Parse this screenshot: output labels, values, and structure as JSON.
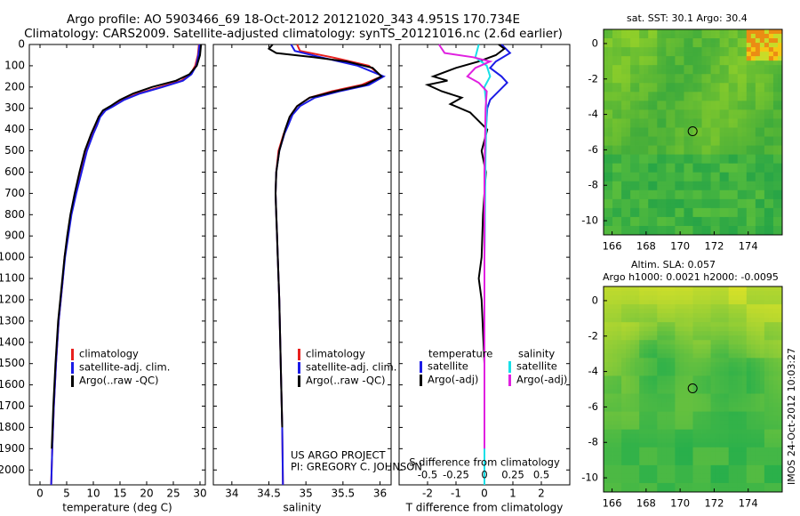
{
  "header": {
    "line1": "Argo profile: AO 5903466_69 18-Oct-2012 20121020_343 4.951S 170.734E",
    "line2": "Climatology: CARS2009. Satellite-adjusted climatology: synTS_20121016.nc (2.6d earlier)"
  },
  "depth_axis": {
    "ticks": [
      0,
      100,
      200,
      300,
      400,
      500,
      600,
      700,
      800,
      900,
      1000,
      1100,
      1200,
      1300,
      1400,
      1500,
      1600,
      1700,
      1800,
      1900,
      2000
    ],
    "ylim": [
      2070,
      0
    ]
  },
  "colors": {
    "climatology": "#e8201e",
    "satellite": "#1b1be6",
    "argo": "#000000",
    "argo_s": "#e020e0",
    "satellite_s": "#18e0e8"
  },
  "chart_data": [
    {
      "type": "line",
      "name": "temperature-profile",
      "xlabel": "temperature (deg C)",
      "xlim": [
        -2,
        31
      ],
      "xticks": [
        0,
        5,
        10,
        15,
        20,
        25,
        30
      ],
      "legend": [
        "climatology",
        "satellite-adj. clim.",
        "Argo(..raw -QC)"
      ],
      "series": [
        {
          "name": "climatology",
          "color": "#e8201e",
          "x": [
            29.8,
            29.6,
            29.1,
            28.2,
            26.5,
            22.5,
            18.5,
            15.5,
            13.5,
            12.0,
            11.0,
            10.5,
            9.8,
            8.6,
            7.6,
            6.6,
            5.8,
            5.2,
            4.6,
            4.3,
            3.9,
            3.5,
            3.0,
            2.6,
            2.3,
            2.1
          ],
          "y": [
            0,
            50,
            100,
            140,
            170,
            200,
            230,
            260,
            290,
            310,
            340,
            380,
            420,
            500,
            600,
            700,
            800,
            900,
            1000,
            1100,
            1200,
            1300,
            1500,
            1700,
            1900,
            2070
          ]
        },
        {
          "name": "satellite-adj. clim.",
          "color": "#1b1be6",
          "x": [
            29.9,
            29.7,
            29.3,
            28.4,
            26.8,
            23.0,
            18.8,
            15.8,
            13.8,
            12.3,
            11.3,
            10.7,
            10.0,
            8.8,
            7.8,
            6.8,
            5.9,
            5.3,
            4.7,
            4.3,
            3.9,
            3.5,
            3.0,
            2.6,
            2.3,
            2.1
          ],
          "y": [
            0,
            50,
            100,
            140,
            170,
            200,
            230,
            260,
            290,
            310,
            340,
            380,
            420,
            500,
            600,
            700,
            800,
            900,
            1000,
            1100,
            1200,
            1300,
            1500,
            1700,
            1900,
            2070
          ]
        },
        {
          "name": "Argo(..raw -QC)",
          "color": "#000000",
          "x": [
            30.2,
            30.0,
            29.4,
            28.0,
            25.5,
            21.0,
            17.5,
            15.0,
            13.2,
            11.8,
            11.0,
            10.3,
            9.6,
            8.4,
            7.4,
            6.5,
            5.7,
            5.1,
            4.6,
            4.2,
            3.8,
            3.4,
            2.9,
            2.5,
            2.2
          ],
          "y": [
            0,
            50,
            100,
            140,
            170,
            200,
            230,
            260,
            290,
            310,
            340,
            380,
            420,
            500,
            600,
            700,
            800,
            900,
            1000,
            1100,
            1200,
            1300,
            1500,
            1700,
            1900
          ]
        }
      ]
    },
    {
      "type": "line",
      "name": "salinity-profile",
      "xlabel": "salinity",
      "xlim": [
        33.75,
        36.15
      ],
      "xticks": [
        34,
        34.5,
        35,
        35.5,
        36
      ],
      "xticklabels": [
        "34",
        "34.5",
        "35",
        "35.5",
        "36"
      ],
      "legend": [
        "climatology",
        "satellite-adj. clim.",
        "Argo(..raw -QC)"
      ],
      "annotations": [
        "US ARGO PROJECT",
        "PI: GREGORY C. JOHNSON"
      ],
      "series": [
        {
          "name": "climatology",
          "color": "#e8201e",
          "x": [
            34.88,
            34.92,
            35.35,
            35.85,
            36.02,
            35.75,
            35.35,
            35.05,
            34.88,
            34.8,
            34.75,
            34.7,
            34.63,
            34.6,
            34.59,
            34.6,
            34.61,
            34.62,
            34.64,
            34.66,
            34.68,
            34.69
          ],
          "y": [
            0,
            30,
            60,
            100,
            150,
            190,
            220,
            250,
            290,
            330,
            380,
            420,
            500,
            600,
            700,
            800,
            900,
            1000,
            1200,
            1500,
            1800,
            2070
          ]
        },
        {
          "name": "satellite-adj. clim.",
          "color": "#1b1be6",
          "x": [
            34.8,
            34.85,
            35.2,
            35.7,
            36.05,
            35.85,
            35.45,
            35.12,
            34.92,
            34.82,
            34.76,
            34.71,
            34.64,
            34.6,
            34.59,
            34.6,
            34.61,
            34.62,
            34.64,
            34.66,
            34.68,
            34.69
          ],
          "y": [
            0,
            30,
            60,
            100,
            150,
            190,
            220,
            250,
            290,
            330,
            380,
            420,
            500,
            600,
            700,
            800,
            900,
            1000,
            1200,
            1500,
            1800,
            2070
          ]
        },
        {
          "name": "Argo(..raw -QC)",
          "color": "#000000",
          "x": [
            34.55,
            34.5,
            34.6,
            35.1,
            35.55,
            35.9,
            36.02,
            35.8,
            35.4,
            35.05,
            34.88,
            34.78,
            34.72,
            34.64,
            34.6,
            34.59,
            34.6,
            34.61,
            34.62,
            34.64,
            34.66,
            34.68
          ],
          "y": [
            0,
            20,
            40,
            60,
            80,
            110,
            150,
            190,
            220,
            250,
            290,
            340,
            400,
            500,
            600,
            700,
            800,
            900,
            1000,
            1200,
            1500,
            1800
          ]
        }
      ]
    },
    {
      "type": "line",
      "name": "difference-profile",
      "xlabel": "T difference from climatology",
      "xlabel_top": "S difference from climatology",
      "xlim": [
        -3,
        3
      ],
      "xticks": [
        -2,
        -1,
        0,
        1,
        2
      ],
      "s_ticks": [
        "-0.5",
        "-0.25",
        "0",
        "0.25",
        "0.5"
      ],
      "legend": {
        "temperature": "temperature",
        "salinity": "salinity",
        "t_items": [
          "satellite",
          "Argo(-adj)"
        ],
        "s_items": [
          "satellite",
          "Argo(-adj)"
        ]
      },
      "series": [
        {
          "name": "T satellite",
          "color": "#1b1be6",
          "x": [
            0.6,
            0.9,
            0.4,
            0.2,
            0.6,
            0.8,
            0.5,
            0.2,
            0.1,
            0.05,
            0.02,
            0.0,
            0.0
          ],
          "y": [
            0,
            40,
            80,
            110,
            150,
            180,
            220,
            260,
            300,
            400,
            600,
            1000,
            2070
          ]
        },
        {
          "name": "T Argo(-adj)",
          "color": "#000000",
          "x": [
            0.5,
            0.7,
            0.4,
            -0.2,
            -1.0,
            -1.8,
            -1.3,
            -2.0,
            -1.5,
            -0.8,
            -1.2,
            -0.5,
            -0.2,
            0.1,
            -0.1,
            0.05,
            -0.05,
            -0.1,
            -0.2,
            -0.1,
            0.0,
            0.0
          ],
          "y": [
            0,
            20,
            50,
            80,
            110,
            150,
            170,
            190,
            220,
            250,
            280,
            320,
            360,
            400,
            500,
            600,
            800,
            1000,
            1100,
            1200,
            1500,
            1900
          ]
        },
        {
          "name": "S satellite",
          "color": "#18e0e8",
          "x": [
            -0.05,
            -0.08,
            0.02,
            0.05,
            0.0,
            0.02,
            0.01,
            0.0,
            0.0
          ],
          "y": [
            0,
            60,
            100,
            150,
            200,
            300,
            500,
            1000,
            2070
          ]
        },
        {
          "name": "S Argo(-adj)",
          "color": "#e020e0",
          "x": [
            -0.4,
            -0.35,
            -0.1,
            0.05,
            -0.08,
            -0.15,
            -0.05,
            0.02,
            0.01,
            0.0,
            0.0
          ],
          "y": [
            0,
            40,
            60,
            80,
            110,
            150,
            180,
            220,
            300,
            600,
            1900
          ]
        }
      ]
    },
    {
      "type": "heatmap",
      "name": "sst-map",
      "title": "sat. SST: 30.1  Argo: 30.4",
      "xlim": [
        165.5,
        176
      ],
      "ylim": [
        -10.8,
        0.8
      ],
      "xticks": [
        166,
        168,
        170,
        172,
        174
      ],
      "yticks": [
        0,
        -2,
        -4,
        -6,
        -8,
        -10
      ],
      "marker": [
        170.734,
        -4.951
      ]
    },
    {
      "type": "heatmap",
      "name": "sla-map",
      "title_line1": "Altim. SLA: 0.057",
      "title_line2": "Argo h1000: 0.0021  h2000: -0.0095",
      "xlim": [
        165.5,
        176
      ],
      "ylim": [
        -10.8,
        0.8
      ],
      "xticks": [
        166,
        168,
        170,
        172,
        174
      ],
      "yticks": [
        0,
        -2,
        -4,
        -6,
        -8,
        -10
      ],
      "marker": [
        170.734,
        -4.951
      ]
    }
  ],
  "footer": {
    "timestamp": "IMOS 24-Oct-2012 10:03:27"
  }
}
